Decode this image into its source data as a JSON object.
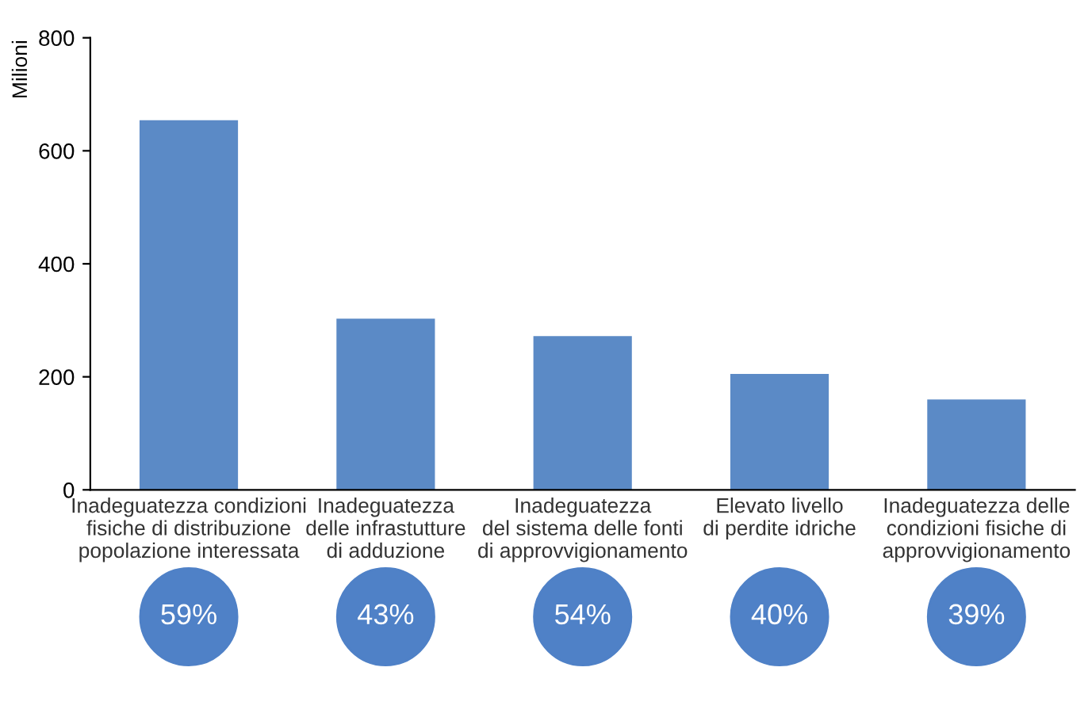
{
  "chart_data": {
    "type": "bar",
    "ylabel": "Milioni",
    "categories": [
      "Inadeguatezza condizioni\nfisiche di distribuzione\npopolazione interessata",
      "Inadeguatezza\ndelle infrastutture\ndi adduzione",
      "Inadeguatezza\ndel sistema delle fonti\ndi approvvigionamento",
      "Elevato livello\ndi perdite idriche",
      "Inadeguatezza delle\ncondizioni fisiche di\napprovvigionamento"
    ],
    "values": [
      654,
      303,
      272,
      205,
      160
    ],
    "color": "#5b8ac6",
    "ylim": [
      0,
      800
    ],
    "yticks": [
      0,
      200,
      400,
      600,
      800
    ],
    "grid": false,
    "legend": false,
    "annotations": [
      "59%",
      "43%",
      "54%",
      "40%",
      "39%"
    ]
  }
}
